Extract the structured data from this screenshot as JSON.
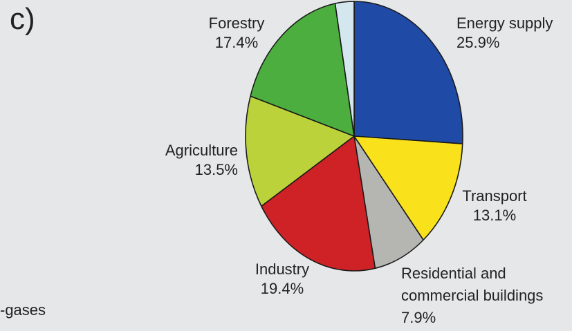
{
  "panel_label": "c)",
  "side_text": "-gases",
  "chart_data": {
    "type": "pie",
    "title": "",
    "slices": [
      {
        "label": "Energy supply",
        "value_text": "25.9%",
        "value": 25.9,
        "color": "#1f4aa6"
      },
      {
        "label": "Transport",
        "value_text": "13.1%",
        "value": 13.1,
        "color": "#f9e21b"
      },
      {
        "label": "Residential and commercial buildings",
        "value_text": "7.9%",
        "value": 7.9,
        "color": "#b5b5b2"
      },
      {
        "label": "Industry",
        "value_text": "19.4%",
        "value": 19.4,
        "color": "#cf2227"
      },
      {
        "label": "Agriculture",
        "value_text": "13.5%",
        "value": 13.5,
        "color": "#bcd23a"
      },
      {
        "label": "Forestry",
        "value_text": "17.4%",
        "value": 17.4,
        "color": "#4cae3e"
      },
      {
        "label": "",
        "value_text": "",
        "value": 2.8,
        "color": "#d4e6ee"
      }
    ],
    "labels": {
      "energy_supply": {
        "line1": "Energy supply",
        "line2": "25.9%"
      },
      "transport": {
        "line1": "Transport",
        "line2": "13.1%"
      },
      "residential": {
        "line1": "Residential and",
        "line2": "commercial buildings",
        "line3": "7.9%"
      },
      "industry": {
        "line1": "Industry",
        "line2": "19.4%"
      },
      "agriculture": {
        "line1": "Agriculture",
        "line2": "13.5%"
      },
      "forestry": {
        "line1": "Forestry",
        "line2": "17.4%"
      }
    },
    "start_angle_deg": 0,
    "direction": "clockwise",
    "legend": "none"
  }
}
